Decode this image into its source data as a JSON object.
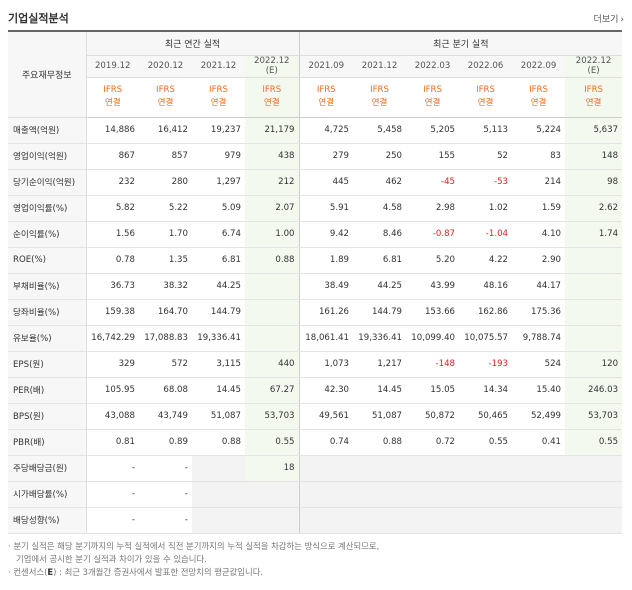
{
  "header": {
    "title": "기업실적분석",
    "more_label": "더보기",
    "more_icon": "chevron-right-icon"
  },
  "table": {
    "row_header_label": "주요재무정보",
    "annual_group_label": "최근 연간 실적",
    "quarter_group_label": "최근 분기 실적",
    "annual_periods": [
      "2019.12",
      "2020.12",
      "2021.12",
      "2022.12\n(E)"
    ],
    "quarter_periods": [
      "2021.09",
      "2021.12",
      "2022.03",
      "2022.06",
      "2022.09",
      "2022.12\n(E)"
    ],
    "ifrs_line1": "IFRS",
    "ifrs_line2": "연결",
    "rows": [
      {
        "label": "매출액(억원)",
        "annual": [
          "14,886",
          "16,412",
          "19,237",
          "21,179"
        ],
        "quarter": [
          "4,725",
          "5,458",
          "5,205",
          "5,113",
          "5,224",
          "5,637"
        ]
      },
      {
        "label": "영업이익(억원)",
        "annual": [
          "867",
          "857",
          "979",
          "438"
        ],
        "quarter": [
          "279",
          "250",
          "155",
          "52",
          "83",
          "148"
        ]
      },
      {
        "label": "당기순이익(억원)",
        "annual": [
          "232",
          "280",
          "1,297",
          "212"
        ],
        "quarter": [
          "445",
          "462",
          "-45",
          "-53",
          "214",
          "98"
        ]
      },
      {
        "label": "영업이익률(%)",
        "annual": [
          "5.82",
          "5.22",
          "5.09",
          "2.07"
        ],
        "quarter": [
          "5.91",
          "4.58",
          "2.98",
          "1.02",
          "1.59",
          "2.62"
        ]
      },
      {
        "label": "순이익률(%)",
        "annual": [
          "1.56",
          "1.70",
          "6.74",
          "1.00"
        ],
        "quarter": [
          "9.42",
          "8.46",
          "-0.87",
          "-1.04",
          "4.10",
          "1.74"
        ]
      },
      {
        "label": "ROE(%)",
        "annual": [
          "0.78",
          "1.35",
          "6.81",
          "0.88"
        ],
        "quarter": [
          "1.89",
          "6.81",
          "5.20",
          "4.22",
          "2.90",
          ""
        ]
      },
      {
        "label": "부채비율(%)",
        "annual": [
          "36.73",
          "38.32",
          "44.25",
          ""
        ],
        "quarter": [
          "38.49",
          "44.25",
          "43.99",
          "48.16",
          "44.17",
          ""
        ]
      },
      {
        "label": "당좌비율(%)",
        "annual": [
          "159.38",
          "164.70",
          "144.79",
          ""
        ],
        "quarter": [
          "161.26",
          "144.79",
          "153.66",
          "162.86",
          "175.36",
          ""
        ]
      },
      {
        "label": "유보율(%)",
        "annual": [
          "16,742.29",
          "17,088.83",
          "19,336.41",
          ""
        ],
        "quarter": [
          "18,061.41",
          "19,336.41",
          "10,099.40",
          "10,075.57",
          "9,788.74",
          ""
        ]
      },
      {
        "label": "EPS(원)",
        "annual": [
          "329",
          "572",
          "3,115",
          "440"
        ],
        "quarter": [
          "1,073",
          "1,217",
          "-148",
          "-193",
          "524",
          "120"
        ]
      },
      {
        "label": "PER(배)",
        "annual": [
          "105.95",
          "68.08",
          "14.45",
          "67.27"
        ],
        "quarter": [
          "42.30",
          "14.45",
          "15.05",
          "14.34",
          "15.40",
          "246.03"
        ]
      },
      {
        "label": "BPS(원)",
        "annual": [
          "43,088",
          "43,749",
          "51,087",
          "53,703"
        ],
        "quarter": [
          "49,561",
          "51,087",
          "50,872",
          "50,465",
          "52,499",
          "53,703"
        ]
      },
      {
        "label": "PBR(배)",
        "annual": [
          "0.81",
          "0.89",
          "0.88",
          "0.55"
        ],
        "quarter": [
          "0.74",
          "0.88",
          "0.72",
          "0.55",
          "0.41",
          "0.55"
        ]
      },
      {
        "label": "주당배당금(원)",
        "annual": [
          "-",
          "-",
          "",
          "18"
        ],
        "quarter": [
          "",
          "",
          "",
          "",
          "",
          ""
        ]
      },
      {
        "label": "시가배당률(%)",
        "annual": [
          "-",
          "-",
          "",
          ""
        ],
        "quarter": [
          "",
          "",
          "",
          "",
          "",
          ""
        ]
      },
      {
        "label": "배당성향(%)",
        "annual": [
          "-",
          "-",
          "",
          ""
        ],
        "quarter": [
          "",
          "",
          "",
          "",
          "",
          ""
        ]
      }
    ]
  },
  "notes": {
    "line1": "· 분기 실적은 해당 분기까지의 누적 실적에서 직전 분기까지의 누적 실적을 차감하는 방식으로 계산되므로,",
    "line2": "기업에서 공시한 분기 실적과 차이가 있을 수 있습니다.",
    "line3_prefix": "· 컨센서스(",
    "line3_e": "E",
    "line3_suffix": ") : 최근 3개월간 증권사에서 발표한 전망치의 평균값입니다."
  },
  "colors": {
    "ifrs_orange": "#f06c1b",
    "negative_red": "#e21d1d",
    "estimate_bg": "#f3f9ef"
  }
}
